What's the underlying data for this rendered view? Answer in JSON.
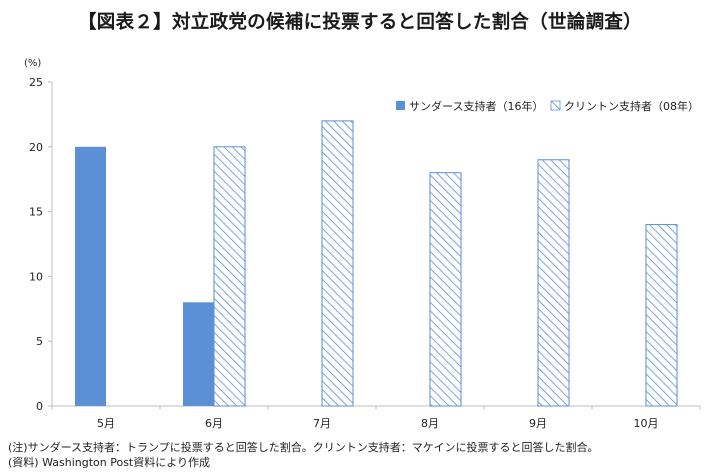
{
  "title": "【図表２】対立政党の候補に投票すると回答した割合（世論調査）",
  "unit_label": "(%)",
  "notes": [
    "(注)サンダース支持者：トランプに投票すると回答した割合。クリントン支持者：マケインに投票すると回答した割合。",
    "(資料) Washington Post資料により作成"
  ],
  "colors": {
    "sanders": "#5B8FD6",
    "clinton_hatch": "#5B8FD6",
    "axis": "#BFBFBF",
    "text": "#222222"
  },
  "chart_data": {
    "type": "bar",
    "categories": [
      "5月",
      "6月",
      "7月",
      "8月",
      "9月",
      "10月"
    ],
    "series": [
      {
        "name": "サンダース支持者（16年）",
        "style": "solid",
        "values": [
          20,
          8,
          null,
          null,
          null,
          null
        ]
      },
      {
        "name": "クリントン支持者（08年）",
        "style": "hatched",
        "values": [
          null,
          20,
          22,
          18,
          19,
          14
        ]
      }
    ],
    "yticks": [
      "0",
      "5",
      "10",
      "15",
      "20",
      "25"
    ],
    "ylim": [
      0,
      25
    ],
    "grid": false,
    "legend_position": "top-right"
  }
}
